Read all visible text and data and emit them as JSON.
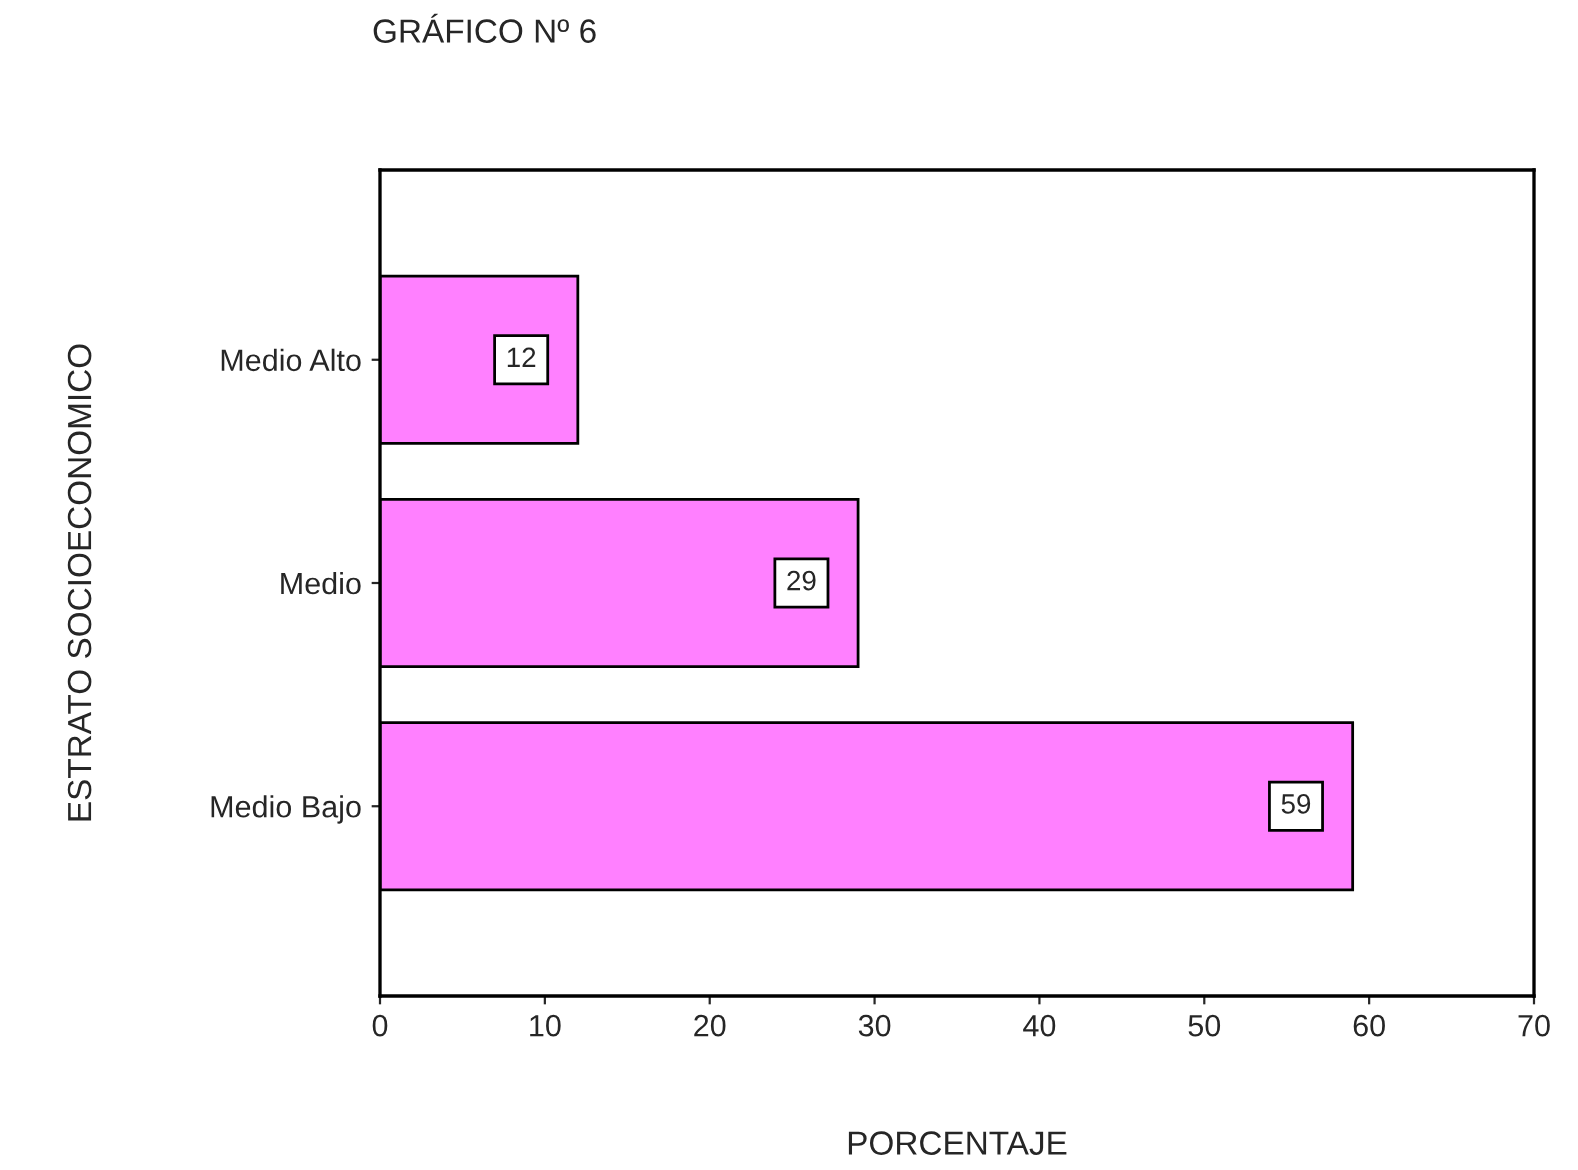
{
  "chart_data": {
    "type": "bar",
    "orientation": "horizontal",
    "title": "GRÁFICO Nº 6",
    "xlabel": "PORCENTAJE",
    "ylabel": "ESTRATO SOCIOECONOMICO",
    "categories": [
      "Medio Alto",
      "Medio",
      "Medio Bajo"
    ],
    "values": [
      12,
      29,
      59
    ],
    "color": "#ff80ff",
    "xlim": [
      0,
      70
    ],
    "xticks": [
      0,
      10,
      20,
      30,
      40,
      50,
      60,
      70
    ],
    "data_labels": true,
    "grid": false,
    "legend": false
  }
}
